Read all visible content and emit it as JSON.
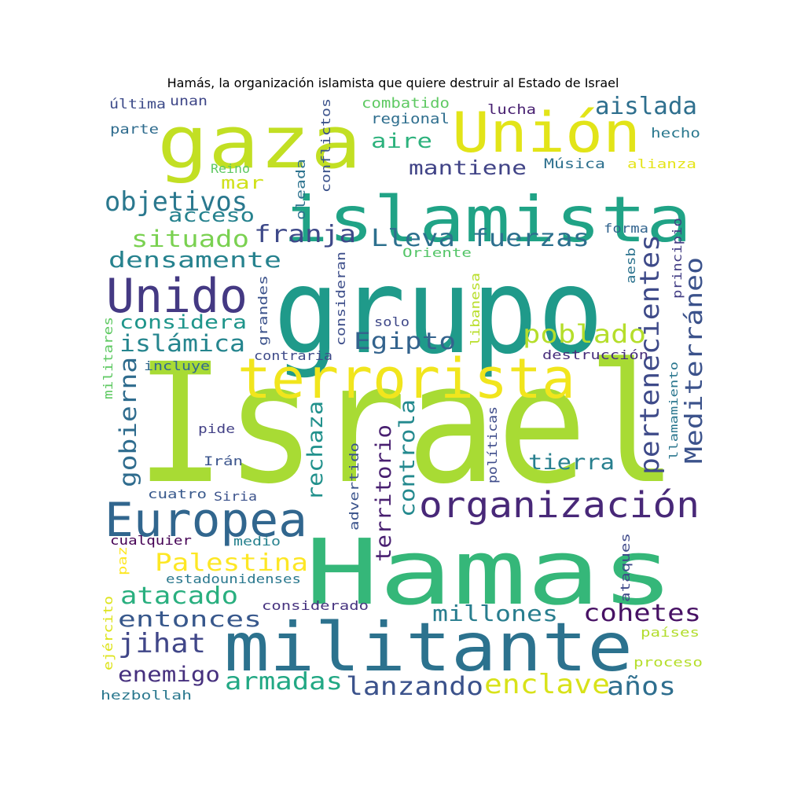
{
  "title": "Hamás, la organización islamista que quiere destruir al Estado de Israel",
  "words": [
    {
      "text": "Israel",
      "color": "#a8db34"
    },
    {
      "text": "grupo",
      "color": "#1f9a8a"
    },
    {
      "text": "Hamas",
      "color": "#35b779"
    },
    {
      "text": "militante",
      "color": "#2c728e"
    },
    {
      "text": "islamista",
      "color": "#20a386"
    },
    {
      "text": "gaza",
      "color": "#c2df23"
    },
    {
      "text": "Unión",
      "color": "#e2e418"
    },
    {
      "text": "terrorista",
      "color": "#f1e51d"
    },
    {
      "text": "Europea",
      "color": "#31668e"
    },
    {
      "text": "Unido",
      "color": "#443983"
    },
    {
      "text": "organización",
      "color": "#482878"
    },
    {
      "text": "pertenecientes",
      "color": "#3e4a89"
    },
    {
      "text": "Mediterráneo",
      "color": "#3b528b"
    },
    {
      "text": "Lleva fuerzas",
      "color": "#2d708e"
    },
    {
      "text": "objetivos",
      "color": "#2a788e"
    },
    {
      "text": "franja",
      "color": "#3e4989"
    },
    {
      "text": "situado",
      "color": "#7ad151"
    },
    {
      "text": "densamente",
      "color": "#26828e"
    },
    {
      "text": "considera",
      "color": "#1f958b"
    },
    {
      "text": "islámica",
      "color": "#25858e"
    },
    {
      "text": "Egipto",
      "color": "#33638d"
    },
    {
      "text": "poblado",
      "color": "#b5de2b"
    },
    {
      "text": "gobierna",
      "color": "#2f6c8e"
    },
    {
      "text": "rechaza",
      "color": "#21918c"
    },
    {
      "text": "territorio",
      "color": "#481f70"
    },
    {
      "text": "controla",
      "color": "#23898e"
    },
    {
      "text": "tierra",
      "color": "#277f8e"
    },
    {
      "text": "Palestina",
      "color": "#fde725"
    },
    {
      "text": "atacado",
      "color": "#29af7f"
    },
    {
      "text": "cohetes",
      "color": "#471164"
    },
    {
      "text": "millones",
      "color": "#287d8e"
    },
    {
      "text": "entonces",
      "color": "#38588c"
    },
    {
      "text": "jihat",
      "color": "#404688"
    },
    {
      "text": "enemigo",
      "color": "#46307e"
    },
    {
      "text": "armadas",
      "color": "#22a884"
    },
    {
      "text": "lanzando",
      "color": "#3b528b"
    },
    {
      "text": "enclave",
      "color": "#d8e219"
    },
    {
      "text": "años",
      "color": "#2e6e8e"
    },
    {
      "text": "aislada",
      "color": "#2e6f8e"
    },
    {
      "text": "aire",
      "color": "#2db27d"
    },
    {
      "text": "mantiene",
      "color": "#414487"
    },
    {
      "text": "mar",
      "color": "#d0e11c"
    },
    {
      "text": "acceso",
      "color": "#26828e"
    },
    {
      "text": "conflictos",
      "color": "#3b528b"
    },
    {
      "text": "oleada",
      "color": "#2c728e"
    },
    {
      "text": "combatido",
      "color": "#5ec962"
    },
    {
      "text": "regional",
      "color": "#2e6e8e"
    },
    {
      "text": "lucha",
      "color": "#482071"
    },
    {
      "text": "última",
      "color": "#3e4c8a"
    },
    {
      "text": "unan",
      "color": "#3f4788"
    },
    {
      "text": "parte",
      "color": "#2f6c8e"
    },
    {
      "text": "hecho",
      "color": "#2a788e"
    },
    {
      "text": "Reino",
      "color": "#5ec962"
    },
    {
      "text": "Música",
      "color": "#2d708e"
    },
    {
      "text": "alianza",
      "color": "#e5e419"
    },
    {
      "text": "forma",
      "color": "#32648e"
    },
    {
      "text": "Oriente",
      "color": "#54c568"
    },
    {
      "text": "principio",
      "color": "#433e85"
    },
    {
      "text": "aesb",
      "color": "#2c738e"
    },
    {
      "text": "grandes",
      "color": "#3b528b"
    },
    {
      "text": "consideran",
      "color": "#3d4e8a"
    },
    {
      "text": "libanesa",
      "color": "#b8de29"
    },
    {
      "text": "solo",
      "color": "#3f4889"
    },
    {
      "text": "militares",
      "color": "#5ec962"
    },
    {
      "text": "incluye",
      "color": "#31688e"
    },
    {
      "text": "contraria",
      "color": "#3e4a89"
    },
    {
      "text": "destrucción",
      "color": "#472d7b"
    },
    {
      "text": "llamamiento",
      "color": "#2a768e"
    },
    {
      "text": "pide",
      "color": "#424086"
    },
    {
      "text": "Irán",
      "color": "#3a548c"
    },
    {
      "text": "advertido",
      "color": "#3a538b"
    },
    {
      "text": "políticas",
      "color": "#3e4c8a"
    },
    {
      "text": "cuatro",
      "color": "#38598c"
    },
    {
      "text": "Siria",
      "color": "#3b528b"
    },
    {
      "text": "cualquier",
      "color": "#440154"
    },
    {
      "text": "medio",
      "color": "#26818e"
    },
    {
      "text": "paz",
      "color": "#fde725"
    },
    {
      "text": "estadounidenses",
      "color": "#2a788e"
    },
    {
      "text": "ataques",
      "color": "#3e4989"
    },
    {
      "text": "considerado",
      "color": "#46337f"
    },
    {
      "text": "ejército",
      "color": "#dde318"
    },
    {
      "text": "países",
      "color": "#b2dd2d"
    },
    {
      "text": "proceso",
      "color": "#b5de2b"
    },
    {
      "text": "hezbollah",
      "color": "#2a788e"
    }
  ]
}
